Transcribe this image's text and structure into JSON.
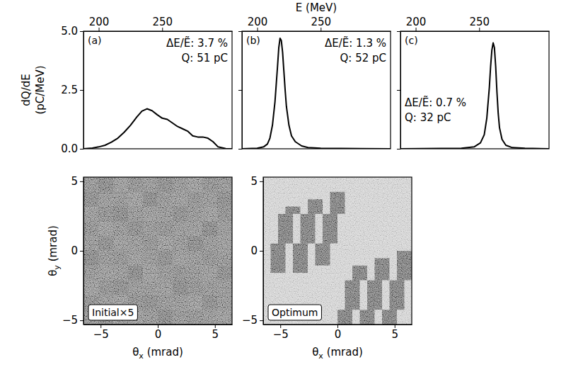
{
  "chart_data": [
    {
      "type": "line",
      "title": "(a)",
      "ylabel": "dQ/dE (pC/MeV)",
      "color": "#000000",
      "x": [
        188,
        195,
        200,
        205,
        210,
        215,
        220,
        225,
        230,
        234,
        238,
        242,
        246,
        250,
        254,
        258,
        262,
        266,
        270,
        274,
        278,
        282,
        286,
        290,
        294,
        300,
        305
      ],
      "values": [
        0,
        0.03,
        0.08,
        0.15,
        0.28,
        0.45,
        0.7,
        1.0,
        1.35,
        1.6,
        1.7,
        1.62,
        1.45,
        1.3,
        1.25,
        1.1,
        0.95,
        0.85,
        0.75,
        0.55,
        0.5,
        0.5,
        0.45,
        0.3,
        0.08,
        0.01,
        0
      ],
      "xlim": [
        188,
        305
      ],
      "xticks": [
        200,
        250
      ],
      "ylim": [
        0,
        5
      ],
      "yticks": [
        {
          "value": 0,
          "label": "0.0"
        },
        2.5,
        {
          "value": 5,
          "label": "5.0"
        }
      ],
      "annotations": [
        "ΔE/Ẽ: 3.7 %",
        "Q: 51 pC"
      ]
    },
    {
      "type": "line",
      "title": "(b)",
      "xlabel": "E (MeV)",
      "color": "#000000",
      "tick_labels": "x",
      "x": [
        188,
        200,
        205,
        208,
        210,
        212,
        214,
        216,
        217,
        218,
        219,
        220,
        221,
        222,
        223,
        225,
        227,
        230,
        235,
        240,
        250,
        305
      ],
      "values": [
        0,
        0.02,
        0.08,
        0.2,
        0.45,
        1.0,
        2.0,
        3.5,
        4.3,
        4.7,
        4.6,
        4.1,
        3.3,
        2.5,
        1.8,
        1.0,
        0.55,
        0.3,
        0.12,
        0.05,
        0.02,
        0
      ],
      "xlim": [
        188,
        305
      ],
      "xticks": [
        200,
        250
      ],
      "ylim": [
        0,
        5
      ],
      "yticks": [
        {
          "value": 0,
          "label": "0.0"
        },
        2.5,
        {
          "value": 5,
          "label": "5.0"
        }
      ],
      "annotations": [
        "ΔE/Ẽ: 1.3 %",
        "Q: 52 pC"
      ]
    },
    {
      "type": "line",
      "title": "(c)",
      "color": "#000000",
      "tick_labels": "x",
      "x": [
        188,
        236,
        246,
        251,
        254,
        256,
        258,
        259,
        260,
        261,
        262,
        263,
        264,
        265,
        266,
        268,
        271,
        276,
        286,
        305
      ],
      "values": [
        0,
        0.02,
        0.08,
        0.25,
        0.6,
        1.3,
        2.6,
        3.5,
        4.2,
        4.5,
        4.3,
        3.5,
        2.4,
        1.5,
        0.9,
        0.4,
        0.15,
        0.05,
        0.02,
        0
      ],
      "xlim": [
        188,
        305
      ],
      "xticks": [
        200,
        250
      ],
      "ylim": [
        0,
        5
      ],
      "yticks": [
        {
          "value": 0,
          "label": "0.0"
        },
        2.5,
        {
          "value": 5,
          "label": "5.0"
        }
      ],
      "annotations": [
        "ΔE/Ẽ: 0.7 %",
        "Q: 32 pC"
      ]
    },
    {
      "type": "heatmap",
      "title": "Initial×5",
      "xlabel": "θx (mrad)",
      "ylabel": "θy (mrad)",
      "xlim": [
        -6.5,
        6.5
      ],
      "xticks": [
        {
          "value": -5,
          "label": "−5"
        },
        0,
        5
      ],
      "ylim": [
        -5.3,
        5.3
      ],
      "yticks": [
        {
          "value": -5,
          "label": "−5"
        },
        0,
        5
      ],
      "zlim": [
        0,
        1
      ],
      "z": [
        [
          0.5,
          0.47,
          0.52,
          0.49,
          0.51,
          0.48,
          0.5,
          0.53,
          0.49,
          0.5
        ],
        [
          0.48,
          0.51,
          0.5,
          0.53,
          0.47,
          0.5,
          0.52,
          0.49,
          0.51,
          0.48
        ],
        [
          0.52,
          0.49,
          0.47,
          0.5,
          0.52,
          0.51,
          0.48,
          0.5,
          0.53,
          0.49
        ],
        [
          0.49,
          0.53,
          0.5,
          0.48,
          0.5,
          0.49,
          0.51,
          0.52,
          0.47,
          0.51
        ],
        [
          0.51,
          0.48,
          0.52,
          0.51,
          0.49,
          0.53,
          0.5,
          0.47,
          0.5,
          0.52
        ],
        [
          0.47,
          0.5,
          0.49,
          0.52,
          0.5,
          0.48,
          0.52,
          0.51,
          0.49,
          0.5
        ],
        [
          0.5,
          0.52,
          0.51,
          0.47,
          0.53,
          0.5,
          0.49,
          0.5,
          0.52,
          0.48
        ],
        [
          0.53,
          0.49,
          0.48,
          0.5,
          0.51,
          0.52,
          0.47,
          0.49,
          0.5,
          0.51
        ],
        [
          0.49,
          0.51,
          0.53,
          0.49,
          0.48,
          0.5,
          0.51,
          0.53,
          0.48,
          0.5
        ],
        [
          0.5,
          0.48,
          0.5,
          0.52,
          0.5,
          0.47,
          0.5,
          0.49,
          0.51,
          0.52
        ]
      ]
    },
    {
      "type": "heatmap",
      "title": "Optimum",
      "xlabel": "θx (mrad)",
      "xlim": [
        -6.5,
        6.5
      ],
      "xticks": [
        {
          "value": -5,
          "label": "−5"
        },
        0,
        5
      ],
      "ylim": [
        -5.3,
        5.3
      ],
      "yticks": [
        {
          "value": -5,
          "label": "−5"
        },
        0,
        5
      ],
      "zlim": [
        0,
        1
      ],
      "z": [
        [
          0.8,
          0.8,
          0.8,
          0.8,
          0.8,
          0.8,
          0.8,
          0.8,
          0.8,
          0.8,
          0.8,
          0.8,
          0.8,
          0.8,
          0.8,
          0.8,
          0.8,
          0.8,
          0.8,
          0.8
        ],
        [
          0.8,
          0.8,
          0.8,
          0.8,
          0.8,
          0.8,
          0.8,
          0.8,
          0.8,
          0.8,
          0.8,
          0.8,
          0.8,
          0.8,
          0.8,
          0.8,
          0.8,
          0.8,
          0.8,
          0.8
        ],
        [
          0.8,
          0.8,
          0.8,
          0.8,
          0.8,
          0.8,
          0.8,
          0.8,
          0.8,
          0.45,
          0.45,
          0.8,
          0.8,
          0.8,
          0.8,
          0.8,
          0.8,
          0.8,
          0.8,
          0.8
        ],
        [
          0.8,
          0.8,
          0.8,
          0.8,
          0.8,
          0.8,
          0.45,
          0.45,
          0.8,
          0.45,
          0.45,
          0.8,
          0.8,
          0.8,
          0.8,
          0.8,
          0.8,
          0.8,
          0.8,
          0.8
        ],
        [
          0.8,
          0.8,
          0.8,
          0.45,
          0.45,
          0.8,
          0.45,
          0.45,
          0.8,
          0.45,
          0.45,
          0.8,
          0.8,
          0.8,
          0.8,
          0.8,
          0.8,
          0.8,
          0.8,
          0.8
        ],
        [
          0.8,
          0.8,
          0.45,
          0.45,
          0.8,
          0.45,
          0.45,
          0.8,
          0.45,
          0.45,
          0.8,
          0.8,
          0.8,
          0.8,
          0.8,
          0.8,
          0.8,
          0.8,
          0.8,
          0.8
        ],
        [
          0.8,
          0.8,
          0.45,
          0.45,
          0.8,
          0.45,
          0.45,
          0.8,
          0.45,
          0.45,
          0.8,
          0.8,
          0.8,
          0.8,
          0.8,
          0.8,
          0.8,
          0.8,
          0.8,
          0.8
        ],
        [
          0.8,
          0.8,
          0.45,
          0.45,
          0.8,
          0.45,
          0.45,
          0.8,
          0.45,
          0.45,
          0.8,
          0.8,
          0.8,
          0.8,
          0.8,
          0.8,
          0.8,
          0.8,
          0.8,
          0.8
        ],
        [
          0.8,
          0.8,
          0.45,
          0.45,
          0.8,
          0.45,
          0.45,
          0.8,
          0.45,
          0.45,
          0.8,
          0.8,
          0.8,
          0.8,
          0.8,
          0.8,
          0.8,
          0.8,
          0.8,
          0.8
        ],
        [
          0.8,
          0.45,
          0.45,
          0.8,
          0.45,
          0.45,
          0.8,
          0.45,
          0.45,
          0.8,
          0.8,
          0.8,
          0.8,
          0.8,
          0.8,
          0.8,
          0.8,
          0.8,
          0.8,
          0.8
        ],
        [
          0.8,
          0.45,
          0.45,
          0.8,
          0.45,
          0.45,
          0.8,
          0.45,
          0.45,
          0.8,
          0.8,
          0.8,
          0.8,
          0.8,
          0.8,
          0.8,
          0.8,
          0.8,
          0.45,
          0.45
        ],
        [
          0.8,
          0.45,
          0.45,
          0.8,
          0.45,
          0.45,
          0.8,
          0.45,
          0.45,
          0.8,
          0.8,
          0.8,
          0.8,
          0.8,
          0.8,
          0.45,
          0.45,
          0.8,
          0.45,
          0.45
        ],
        [
          0.8,
          0.45,
          0.45,
          0.8,
          0.45,
          0.45,
          0.8,
          0.8,
          0.8,
          0.8,
          0.8,
          0.8,
          0.45,
          0.45,
          0.8,
          0.45,
          0.45,
          0.8,
          0.45,
          0.45
        ],
        [
          0.8,
          0.8,
          0.8,
          0.8,
          0.8,
          0.8,
          0.8,
          0.8,
          0.8,
          0.8,
          0.8,
          0.8,
          0.45,
          0.45,
          0.8,
          0.45,
          0.45,
          0.8,
          0.45,
          0.45
        ],
        [
          0.8,
          0.8,
          0.8,
          0.8,
          0.8,
          0.8,
          0.8,
          0.8,
          0.8,
          0.8,
          0.8,
          0.45,
          0.45,
          0.8,
          0.45,
          0.45,
          0.8,
          0.45,
          0.45,
          0.8
        ],
        [
          0.8,
          0.8,
          0.8,
          0.8,
          0.8,
          0.8,
          0.8,
          0.8,
          0.8,
          0.8,
          0.8,
          0.45,
          0.45,
          0.8,
          0.45,
          0.45,
          0.8,
          0.45,
          0.45,
          0.8
        ],
        [
          0.8,
          0.8,
          0.8,
          0.8,
          0.8,
          0.8,
          0.8,
          0.8,
          0.8,
          0.8,
          0.8,
          0.45,
          0.45,
          0.8,
          0.45,
          0.45,
          0.8,
          0.45,
          0.45,
          0.8
        ],
        [
          0.8,
          0.8,
          0.8,
          0.8,
          0.8,
          0.8,
          0.8,
          0.8,
          0.8,
          0.8,
          0.8,
          0.45,
          0.45,
          0.8,
          0.45,
          0.45,
          0.8,
          0.45,
          0.45,
          0.8
        ],
        [
          0.8,
          0.8,
          0.8,
          0.8,
          0.8,
          0.8,
          0.8,
          0.8,
          0.8,
          0.8,
          0.45,
          0.45,
          0.8,
          0.45,
          0.45,
          0.8,
          0.45,
          0.45,
          0.8,
          0.8
        ],
        [
          0.8,
          0.8,
          0.8,
          0.8,
          0.8,
          0.8,
          0.8,
          0.8,
          0.8,
          0.8,
          0.45,
          0.45,
          0.8,
          0.45,
          0.45,
          0.8,
          0.45,
          0.45,
          0.8,
          0.8
        ]
      ]
    }
  ]
}
